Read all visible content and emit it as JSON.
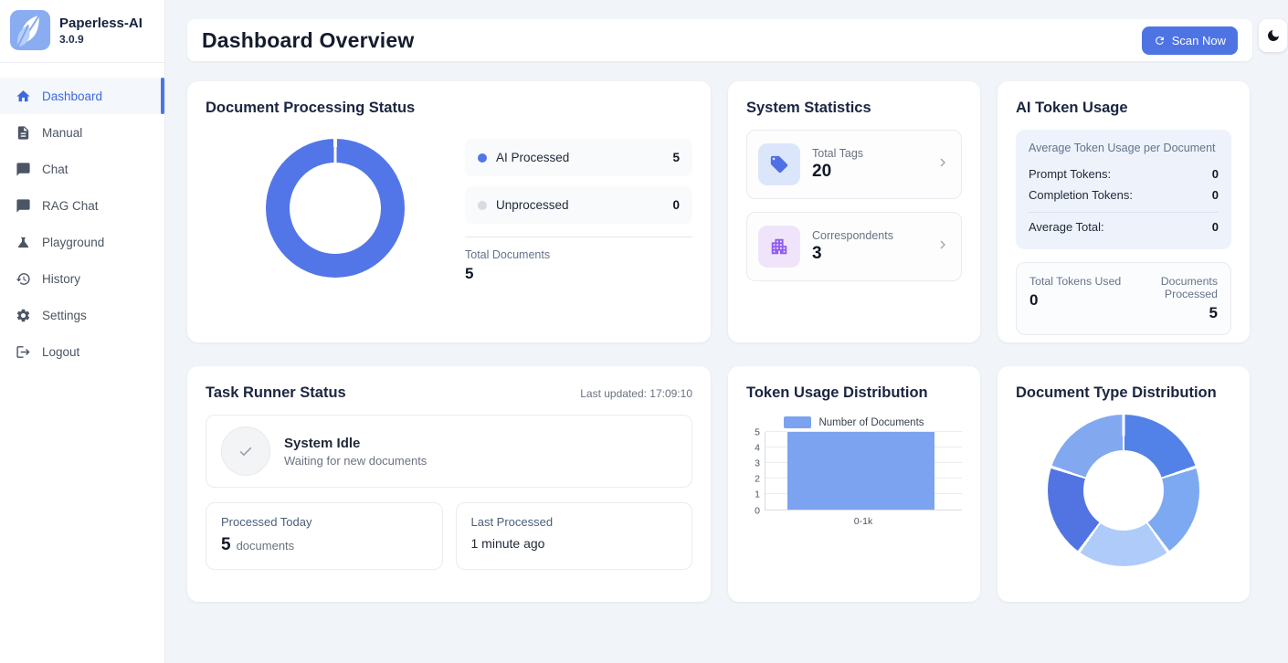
{
  "app": {
    "name": "Paperless-AI",
    "version": "3.0.9"
  },
  "sidebar": {
    "items": [
      {
        "label": "Dashboard",
        "icon": "home-icon",
        "active": true
      },
      {
        "label": "Manual",
        "icon": "document-icon",
        "active": false
      },
      {
        "label": "Chat",
        "icon": "chat-icon",
        "active": false
      },
      {
        "label": "RAG Chat",
        "icon": "chat-icon",
        "active": false
      },
      {
        "label": "Playground",
        "icon": "flask-icon",
        "active": false
      },
      {
        "label": "History",
        "icon": "history-icon",
        "active": false
      },
      {
        "label": "Settings",
        "icon": "gear-icon",
        "active": false
      },
      {
        "label": "Logout",
        "icon": "logout-icon",
        "active": false
      }
    ]
  },
  "header": {
    "title": "Dashboard Overview",
    "scan_button_label": "Scan Now",
    "theme_toggle_icon": "moon-icon"
  },
  "cards": {
    "document_processing": {
      "title": "Document Processing Status"
    },
    "system_statistics": {
      "title": "System Statistics",
      "stats": [
        {
          "label": "Total Tags",
          "value": "20",
          "icon": "tag-icon",
          "icon_color": "#4f6fe6",
          "icon_bg": "#dce6fb"
        },
        {
          "label": "Correspondents",
          "value": "3",
          "icon": "building-icon",
          "icon_color": "#8e5cf0",
          "icon_bg": "#f0e4fb"
        }
      ]
    },
    "ai_token_usage": {
      "title": "AI Token Usage",
      "average_section_title": "Average Token Usage per Document",
      "prompt_label": "Prompt Tokens:",
      "prompt_value": "0",
      "completion_label": "Completion Tokens:",
      "completion_value": "0",
      "average_total_label": "Average Total:",
      "average_total_value": "0",
      "total_tokens_label": "Total Tokens Used",
      "total_tokens_value": "0",
      "documents_processed_label": "Documents Processed",
      "documents_processed_value": "5"
    },
    "task_runner": {
      "title": "Task Runner Status",
      "last_updated": "Last updated: 17:09:10",
      "status_title": "System Idle",
      "status_subtitle": "Waiting for new documents",
      "processed_today_label": "Processed Today",
      "processed_today_value": "5",
      "processed_today_unit": "documents",
      "last_processed_label": "Last Processed",
      "last_processed_value": "1 minute ago"
    },
    "token_usage_distribution": {
      "title": "Token Usage Distribution"
    },
    "document_type_distribution": {
      "title": "Document Type Distribution"
    }
  },
  "colors": {
    "accent_blue": "#4e74e4",
    "page_background": "#f1f4f8",
    "donut_blue": "#5276e8",
    "unprocessed_gray": "#d7dbe2",
    "bar_blue": "#7ba3f0"
  },
  "chart_data": [
    {
      "id": "document-processing-donut",
      "type": "donut",
      "title": "Document Processing Status",
      "labels": [
        "AI Processed",
        "Unprocessed"
      ],
      "values": [
        5,
        0
      ],
      "colors": [
        "#5276e8",
        "#d7dbe2"
      ],
      "total_label": "Total Documents",
      "total": 5,
      "legend_position": "right"
    },
    {
      "id": "token-usage-bar",
      "type": "bar",
      "title": "Token Usage Distribution",
      "legend": "Number of Documents",
      "categories": [
        "0-1k"
      ],
      "values": [
        5
      ],
      "bar_color": "#7ba3f0",
      "ylim": [
        0,
        5
      ],
      "yticks": [
        0,
        1,
        2,
        3,
        4,
        5
      ],
      "grid": true,
      "legend_position": "top"
    },
    {
      "id": "document-type-donut",
      "type": "donut",
      "title": "Document Type Distribution",
      "values": [
        1,
        1,
        1,
        1,
        1
      ],
      "colors": [
        "#5282e8",
        "#7da9f2",
        "#aecbfa",
        "#5274e2",
        "#82a9f0"
      ]
    }
  ]
}
